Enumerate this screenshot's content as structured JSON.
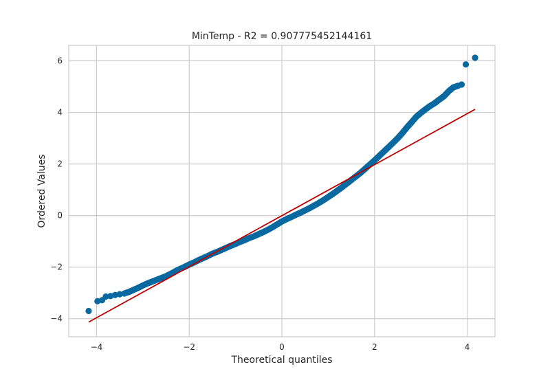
{
  "chart_data": {
    "type": "scatter",
    "title": "MinTemp - R2 = 0.907775452144161",
    "xlabel": "Theoretical quantiles",
    "ylabel": "Ordered Values",
    "xlim": [
      -4.6,
      4.6
    ],
    "ylim": [
      -4.7,
      6.6
    ],
    "xticks": [
      -4,
      -2,
      0,
      2,
      4
    ],
    "yticks": [
      -4,
      -2,
      0,
      2,
      4,
      6
    ],
    "xtick_labels": [
      "−4",
      "−2",
      "0",
      "2",
      "4"
    ],
    "ytick_labels": [
      "−4",
      "−2",
      "0",
      "2",
      "4",
      "6"
    ],
    "grid": true,
    "colors": {
      "points": "#0868a0",
      "fit_line": "#c00000",
      "grid": "#cccccc"
    },
    "series": [
      {
        "kind": "points",
        "points": [
          [
            -4.17,
            -3.7
          ],
          [
            -3.98,
            -3.32
          ],
          [
            -3.88,
            -3.28
          ],
          [
            -3.8,
            -3.14
          ],
          [
            -3.7,
            -3.12
          ],
          [
            -3.6,
            -3.08
          ],
          [
            -3.5,
            -3.05
          ],
          [
            -3.4,
            -3.02
          ],
          [
            -3.3,
            -2.96
          ],
          [
            -3.2,
            -2.88
          ],
          [
            -3.1,
            -2.8
          ],
          [
            -3.0,
            -2.71
          ],
          [
            -2.9,
            -2.63
          ],
          [
            -2.8,
            -2.56
          ],
          [
            -2.7,
            -2.49
          ],
          [
            -2.6,
            -2.42
          ],
          [
            -2.5,
            -2.35
          ],
          [
            -2.4,
            -2.26
          ],
          [
            -2.3,
            -2.16
          ],
          [
            -2.2,
            -2.07
          ],
          [
            -2.1,
            -1.99
          ],
          [
            -2.0,
            -1.9
          ],
          [
            -1.9,
            -1.82
          ],
          [
            -1.8,
            -1.73
          ],
          [
            -1.7,
            -1.65
          ],
          [
            -1.6,
            -1.57
          ],
          [
            -1.5,
            -1.48
          ],
          [
            -1.4,
            -1.41
          ],
          [
            -1.3,
            -1.33
          ],
          [
            -1.2,
            -1.25
          ],
          [
            -1.1,
            -1.17
          ],
          [
            -1.0,
            -1.1
          ],
          [
            -0.9,
            -1.02
          ],
          [
            -0.8,
            -0.95
          ],
          [
            -0.7,
            -0.87
          ],
          [
            -0.6,
            -0.8
          ],
          [
            -0.5,
            -0.72
          ],
          [
            -0.4,
            -0.64
          ],
          [
            -0.3,
            -0.55
          ],
          [
            -0.2,
            -0.45
          ],
          [
            -0.1,
            -0.34
          ],
          [
            0.0,
            -0.23
          ],
          [
            0.1,
            -0.14
          ],
          [
            0.2,
            -0.06
          ],
          [
            0.3,
            0.03
          ],
          [
            0.4,
            0.11
          ],
          [
            0.5,
            0.2
          ],
          [
            0.6,
            0.29
          ],
          [
            0.7,
            0.39
          ],
          [
            0.8,
            0.49
          ],
          [
            0.9,
            0.6
          ],
          [
            1.0,
            0.72
          ],
          [
            1.1,
            0.84
          ],
          [
            1.2,
            0.97
          ],
          [
            1.3,
            1.1
          ],
          [
            1.4,
            1.24
          ],
          [
            1.5,
            1.38
          ],
          [
            1.6,
            1.52
          ],
          [
            1.7,
            1.66
          ],
          [
            1.8,
            1.82
          ],
          [
            1.9,
            1.98
          ],
          [
            2.0,
            2.14
          ],
          [
            2.1,
            2.31
          ],
          [
            2.2,
            2.48
          ],
          [
            2.3,
            2.65
          ],
          [
            2.4,
            2.82
          ],
          [
            2.5,
            3.0
          ],
          [
            2.6,
            3.2
          ],
          [
            2.7,
            3.42
          ],
          [
            2.8,
            3.62
          ],
          [
            2.9,
            3.83
          ],
          [
            3.0,
            3.98
          ],
          [
            3.1,
            4.12
          ],
          [
            3.2,
            4.25
          ],
          [
            3.3,
            4.36
          ],
          [
            3.4,
            4.5
          ],
          [
            3.5,
            4.63
          ],
          [
            3.6,
            4.82
          ],
          [
            3.7,
            4.97
          ],
          [
            3.8,
            5.03
          ],
          [
            3.88,
            5.08
          ],
          [
            3.97,
            5.86
          ],
          [
            4.17,
            6.12
          ]
        ]
      },
      {
        "kind": "fit_line",
        "points": [
          [
            -4.17,
            -4.13
          ],
          [
            4.17,
            4.12
          ]
        ]
      }
    ]
  }
}
